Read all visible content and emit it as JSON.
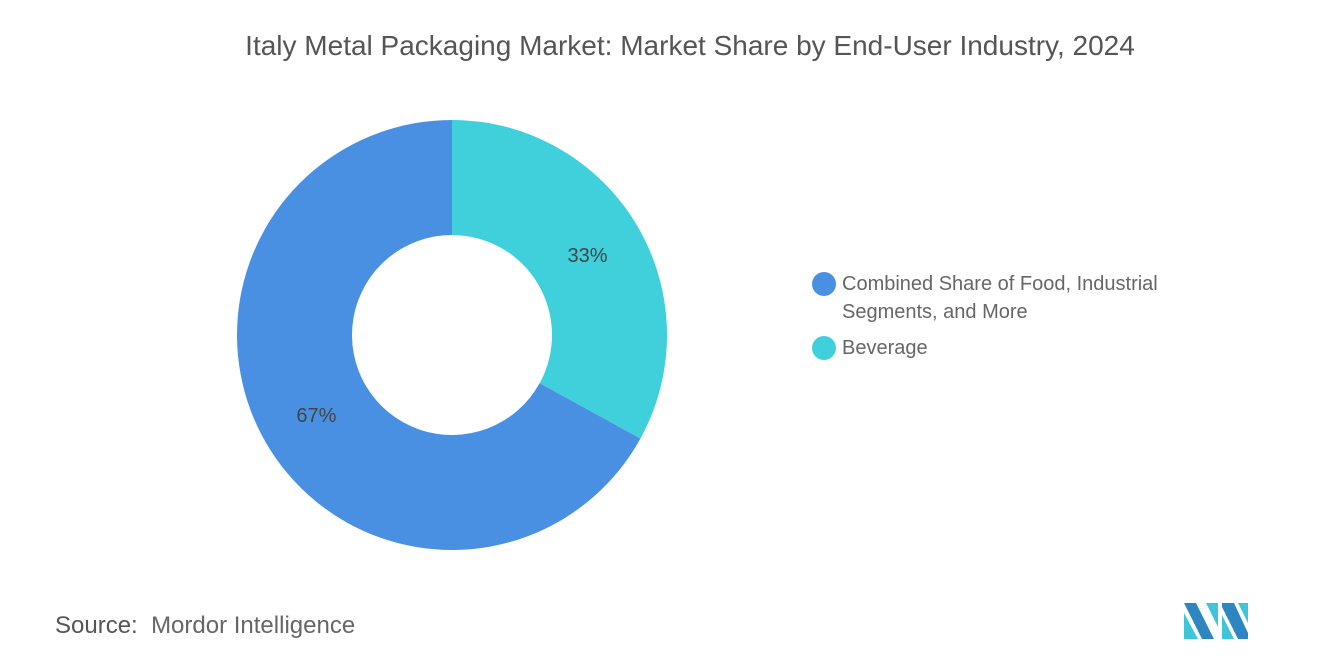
{
  "title": "Italy Metal Packaging Market: Market Share by End-User Industry, 2024",
  "chart_data": {
    "type": "pie",
    "donut": true,
    "title": "Italy Metal Packaging Market: Market Share by End-User Industry, 2024",
    "categories": [
      "Combined Share of Food, Industrial Segments, and More",
      "Beverage"
    ],
    "values": [
      67,
      33
    ],
    "data_labels": [
      "67%",
      "33%"
    ],
    "colors": [
      "#4A90E2",
      "#40D0DC"
    ],
    "legend_position": "right"
  },
  "source": {
    "label": "Source:",
    "value": "Mordor Intelligence"
  },
  "logo": {
    "text": "Mordor Intelligence"
  }
}
